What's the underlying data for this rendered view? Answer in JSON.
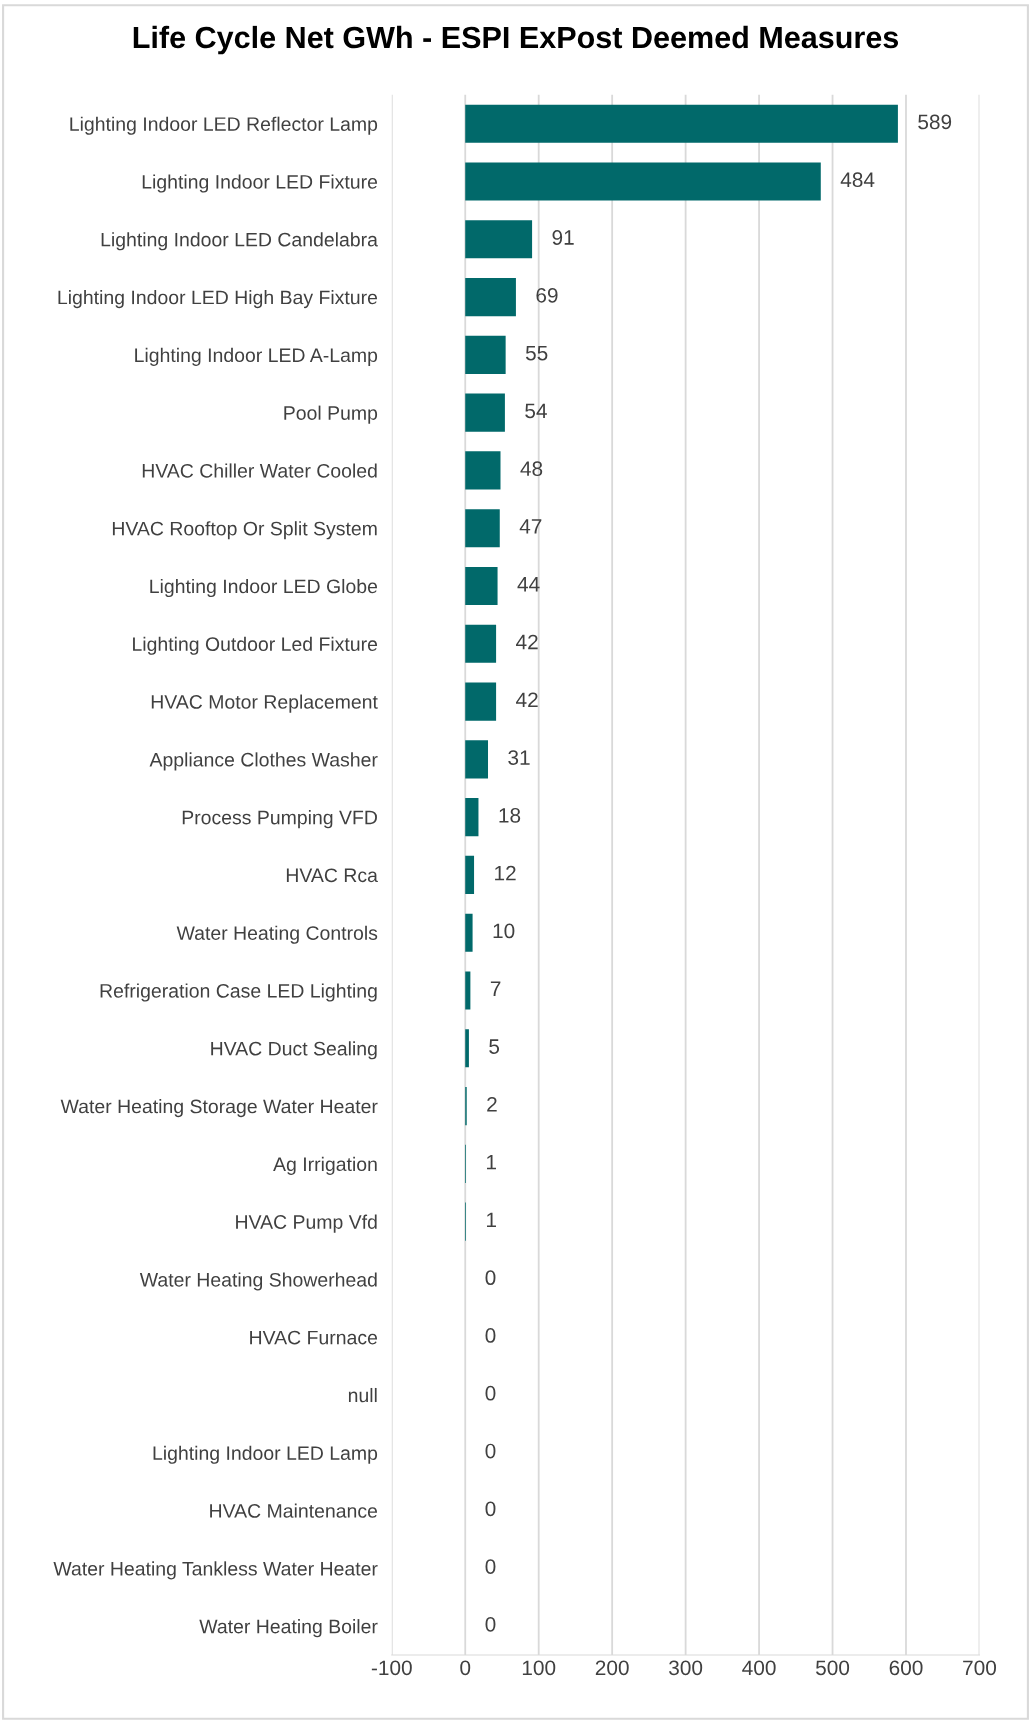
{
  "chart_data": {
    "type": "bar",
    "orientation": "horizontal",
    "title": "Life Cycle Net GWh - ESPI ExPost Deemed Measures",
    "categories": [
      "Lighting Indoor LED Reflector Lamp",
      "Lighting Indoor LED Fixture",
      "Lighting Indoor LED Candelabra",
      "Lighting Indoor LED High Bay Fixture",
      "Lighting Indoor LED A-Lamp",
      "Pool Pump",
      "HVAC Chiller Water Cooled",
      "HVAC Rooftop Or Split System",
      "Lighting Indoor LED Globe",
      "Lighting Outdoor Led Fixture",
      "HVAC Motor Replacement",
      "Appliance Clothes Washer",
      "Process Pumping VFD",
      "HVAC Rca",
      "Water Heating Controls",
      "Refrigeration Case LED Lighting",
      "HVAC Duct Sealing",
      "Water Heating Storage Water Heater",
      "Ag Irrigation",
      "HVAC Pump Vfd",
      "Water Heating Showerhead",
      "HVAC Furnace",
      "null",
      "Lighting Indoor LED Lamp",
      "HVAC Maintenance",
      "Water Heating Tankless Water Heater",
      "Water Heating Boiler"
    ],
    "values": [
      589,
      484,
      91,
      69,
      55,
      54,
      48,
      47,
      44,
      42,
      42,
      31,
      18,
      12,
      10,
      7,
      5,
      2,
      1,
      1,
      0,
      0,
      0,
      0,
      0,
      0,
      0
    ],
    "color": "#01696a",
    "data_labels": true,
    "xlim": [
      -100,
      700
    ],
    "xticks": [
      -100,
      0,
      100,
      200,
      300,
      400,
      500,
      600,
      700
    ],
    "grid": "x"
  }
}
